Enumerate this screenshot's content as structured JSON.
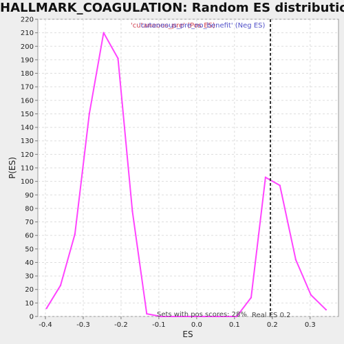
{
  "chart_data": {
    "type": "line",
    "title": "HALLMARK_COAGULATION: Random ES distribution",
    "xlabel": "ES",
    "ylabel": "P(ES)",
    "xlim": [
      -0.42,
      0.375
    ],
    "ylim": [
      0,
      220
    ],
    "x_ticks": [
      "-0.4",
      "-0.3",
      "-0.2",
      "-0.1",
      "0.0",
      "0.1",
      "0.2",
      "0.3"
    ],
    "x_tick_values": [
      -0.4,
      -0.3,
      -0.2,
      -0.1,
      0.0,
      0.1,
      0.2,
      0.3
    ],
    "y_ticks": [
      0,
      10,
      20,
      30,
      40,
      50,
      60,
      70,
      80,
      90,
      100,
      110,
      120,
      130,
      140,
      150,
      160,
      170,
      180,
      190,
      200,
      210,
      220
    ],
    "grid": true,
    "legend": {
      "placement": "top-center",
      "pos_label": "'cutaneous_pre' (Pos ES)",
      "neg_label": "'cutaneous_pre_no_benefit' (Neg ES)",
      "pos_color": "#d04050",
      "neg_color": "#5050c8"
    },
    "series": [
      {
        "color": "#ff44ff",
        "x": [
          -0.397,
          -0.36,
          -0.322,
          -0.284,
          -0.246,
          -0.208,
          -0.17,
          -0.132,
          -0.094,
          -0.056,
          -0.018,
          0.02,
          0.058,
          0.106,
          0.144,
          0.182,
          0.22,
          0.262,
          0.302,
          0.342
        ],
        "y": [
          6,
          23,
          61,
          150,
          210,
          191,
          78,
          2,
          0,
          0,
          0,
          0,
          0,
          0,
          14,
          103,
          97,
          42,
          16,
          5
        ]
      }
    ],
    "real_es": 0.195,
    "real_es_label": "Real ES 0.2",
    "sets_label": "Sets with pos scores: 28%"
  }
}
